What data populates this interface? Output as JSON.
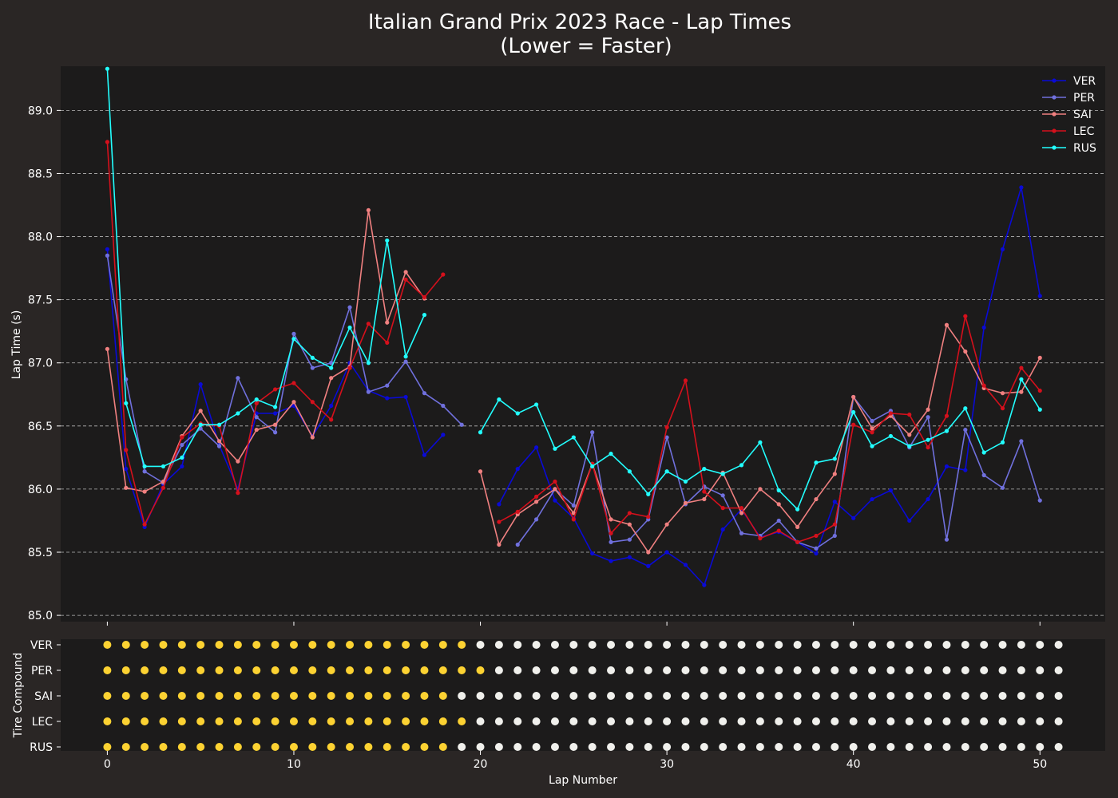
{
  "figure": {
    "title_line1": "Italian Grand Prix 2023 Race - Lap Times",
    "title_line2": "(Lower = Faster)",
    "background": "#2a2625",
    "plot_background": "#1c1b1b",
    "text_color": "#ffffff"
  },
  "chart_data": [
    {
      "type": "line",
      "title": "Italian Grand Prix 2023 Race - Lap Times (Lower = Faster)",
      "xlabel": "",
      "ylabel": "Lap Time (s)",
      "xlim": [
        -2.5,
        53.5
      ],
      "ylim": [
        84.95,
        89.35
      ],
      "yticks": [
        85.0,
        85.5,
        86.0,
        86.5,
        87.0,
        87.5,
        88.0,
        88.5,
        89.0
      ],
      "xticks": [
        0,
        10,
        20,
        30,
        40,
        50
      ],
      "grid": "horizontal dashed",
      "legend": "top-right",
      "series": [
        {
          "name": "VER",
          "color": "#0a0ad6",
          "x": [
            0,
            1,
            2,
            3,
            4,
            5,
            6,
            7,
            8,
            9,
            10,
            11,
            12,
            13,
            14,
            15,
            16,
            17,
            18,
            21,
            22,
            23,
            24,
            25,
            26,
            27,
            28,
            29,
            30,
            31,
            32,
            33,
            34,
            35,
            36,
            37,
            38,
            39,
            40,
            41,
            42,
            43,
            44,
            45,
            46,
            47,
            48,
            49,
            50
          ],
          "y": [
            87.9,
            86.16,
            85.7,
            86.04,
            86.18,
            86.83,
            86.35,
            86.0,
            86.6,
            86.6,
            86.66,
            86.42,
            86.66,
            87.0,
            86.78,
            86.72,
            86.73,
            86.27,
            86.43,
            85.88,
            86.16,
            86.33,
            85.91,
            85.77,
            85.49,
            85.43,
            85.46,
            85.39,
            85.5,
            85.4,
            85.24,
            85.68,
            85.84,
            85.62,
            85.66,
            85.58,
            85.49,
            85.9,
            85.77,
            85.92,
            85.99,
            85.75,
            85.92,
            86.18,
            86.15,
            87.28,
            87.9,
            88.39,
            87.53
          ]
        },
        {
          "name": "PER",
          "color": "#7070dd",
          "x": [
            0,
            1,
            2,
            3,
            4,
            5,
            6,
            7,
            8,
            9,
            10,
            11,
            12,
            13,
            14,
            15,
            16,
            17,
            18,
            19,
            22,
            23,
            24,
            25,
            26,
            27,
            28,
            29,
            30,
            31,
            32,
            33,
            34,
            35,
            36,
            37,
            38,
            39,
            40,
            41,
            42,
            43,
            44,
            45,
            46,
            47,
            48,
            49,
            50
          ],
          "y": [
            87.85,
            86.87,
            86.14,
            86.05,
            86.35,
            86.48,
            86.34,
            86.88,
            86.57,
            86.45,
            87.23,
            86.96,
            87.0,
            87.44,
            86.77,
            86.82,
            87.01,
            86.76,
            86.66,
            86.51,
            85.56,
            85.76,
            86.0,
            85.87,
            86.45,
            85.58,
            85.6,
            85.76,
            86.41,
            85.88,
            86.02,
            85.95,
            85.65,
            85.63,
            85.75,
            85.58,
            85.53,
            85.63,
            86.73,
            86.54,
            86.62,
            86.33,
            86.57,
            85.6,
            86.47,
            86.11,
            86.01,
            86.38,
            85.91
          ]
        },
        {
          "name": "SAI",
          "color": "#f08080",
          "x": [
            0,
            1,
            2,
            3,
            4,
            5,
            6,
            7,
            8,
            9,
            10,
            11,
            12,
            13,
            14,
            15,
            16,
            17,
            20,
            21,
            22,
            23,
            24,
            25,
            26,
            27,
            28,
            29,
            30,
            31,
            32,
            33,
            34,
            35,
            36,
            37,
            38,
            39,
            40,
            41,
            42,
            43,
            44,
            45,
            46,
            47,
            48,
            49,
            50
          ],
          "y": [
            87.11,
            86.01,
            85.98,
            86.06,
            86.42,
            86.62,
            86.38,
            86.22,
            86.47,
            86.51,
            86.69,
            86.41,
            86.88,
            86.97,
            88.21,
            87.32,
            87.72,
            87.51,
            86.14,
            85.56,
            85.8,
            85.9,
            86.0,
            85.81,
            86.2,
            85.76,
            85.72,
            85.5,
            85.72,
            85.89,
            85.92,
            86.13,
            85.81,
            86.0,
            85.88,
            85.7,
            85.92,
            86.12,
            86.73,
            86.48,
            86.58,
            86.43,
            86.63,
            87.3,
            87.09,
            86.8,
            86.76,
            86.77,
            87.04
          ]
        },
        {
          "name": "LEC",
          "color": "#d5101c",
          "x": [
            0,
            1,
            2,
            3,
            4,
            5,
            6,
            7,
            8,
            9,
            10,
            11,
            12,
            13,
            14,
            15,
            16,
            17,
            18,
            21,
            22,
            23,
            24,
            25,
            26,
            27,
            28,
            29,
            30,
            31,
            32,
            33,
            34,
            35,
            36,
            37,
            38,
            39,
            40,
            41,
            42,
            43,
            44,
            45,
            46,
            47,
            48,
            49,
            50
          ],
          "y": [
            88.75,
            86.31,
            85.72,
            86.01,
            86.41,
            86.52,
            86.5,
            85.97,
            86.68,
            86.79,
            86.84,
            86.69,
            86.55,
            86.96,
            87.31,
            87.16,
            87.66,
            87.52,
            87.7,
            85.74,
            85.82,
            85.94,
            86.06,
            85.76,
            86.2,
            85.65,
            85.81,
            85.78,
            86.49,
            86.86,
            85.98,
            85.85,
            85.85,
            85.61,
            85.67,
            85.58,
            85.63,
            85.72,
            86.51,
            86.45,
            86.6,
            86.59,
            86.33,
            86.58,
            87.37,
            86.82,
            86.64,
            86.96,
            86.78
          ]
        },
        {
          "name": "RUS",
          "color": "#22ffff",
          "x": [
            0,
            1,
            2,
            3,
            4,
            5,
            6,
            7,
            8,
            9,
            10,
            11,
            12,
            13,
            14,
            15,
            16,
            17,
            20,
            21,
            22,
            23,
            24,
            25,
            26,
            27,
            28,
            29,
            30,
            31,
            32,
            33,
            34,
            35,
            36,
            37,
            38,
            39,
            40,
            41,
            42,
            43,
            44,
            45,
            46,
            47,
            48,
            49,
            50
          ],
          "y": [
            89.33,
            86.68,
            86.18,
            86.18,
            86.25,
            86.51,
            86.51,
            86.6,
            86.71,
            86.65,
            87.19,
            87.04,
            86.96,
            87.28,
            87.0,
            87.97,
            87.05,
            87.38,
            86.45,
            86.71,
            86.6,
            86.67,
            86.32,
            86.41,
            86.18,
            86.28,
            86.14,
            85.96,
            86.14,
            86.06,
            86.16,
            86.12,
            86.19,
            86.37,
            85.99,
            85.84,
            86.21,
            86.24,
            86.61,
            86.34,
            86.42,
            86.34,
            86.39,
            86.46,
            86.64,
            86.29,
            86.37,
            86.87,
            86.63
          ]
        }
      ]
    },
    {
      "type": "scatter",
      "xlabel": "Lap Number",
      "ylabel": "Tire Compound",
      "xlim": [
        -2.5,
        53.5
      ],
      "xticks": [
        0,
        10,
        20,
        30,
        40,
        50
      ],
      "drivers": [
        "VER",
        "PER",
        "SAI",
        "LEC",
        "RUS"
      ],
      "compound_colors": {
        "medium": "#fcd232",
        "hard": "#f0f0ec"
      },
      "laps": {
        "first": 0,
        "last": 51
      },
      "compound_switch_lap": {
        "VER": 20,
        "PER": 21,
        "SAI": 19,
        "LEC": 20,
        "RUS": 19
      }
    }
  ]
}
